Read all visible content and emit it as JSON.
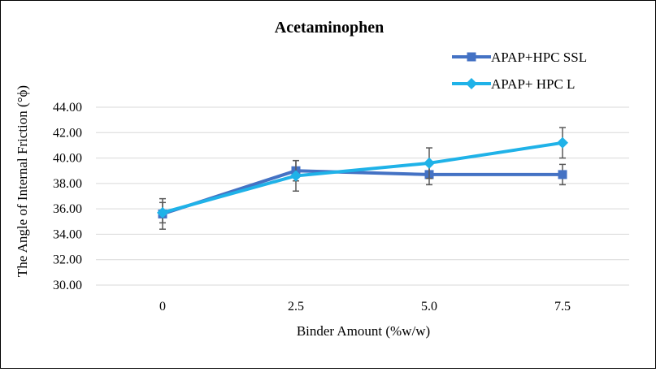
{
  "chart_data": {
    "type": "line",
    "title": "Acetaminophen",
    "xlabel": "Binder Amount (%w/w)",
    "ylabel": "The Angle of Internal Friction (°ϕ)",
    "categories": [
      "0",
      "2.5",
      "5.0",
      "7.5"
    ],
    "y_ticks": [
      "30.00",
      "32.00",
      "34.00",
      "36.00",
      "38.00",
      "40.00",
      "42.00",
      "44.00"
    ],
    "ylim": [
      30,
      44
    ],
    "grid": true,
    "legend_position": "top-right",
    "series": [
      {
        "name": "APAP+HPC SSL",
        "values": [
          35.6,
          39.0,
          38.7,
          38.7
        ],
        "error": [
          1.2,
          0.8,
          0.8,
          0.8
        ],
        "color": "#4472C4",
        "marker": "square"
      },
      {
        "name": "APAP+ HPC L",
        "values": [
          35.7,
          38.6,
          39.6,
          41.2
        ],
        "error": [
          0.8,
          1.2,
          1.2,
          1.2
        ],
        "color": "#1FB2E8",
        "marker": "diamond"
      }
    ]
  }
}
